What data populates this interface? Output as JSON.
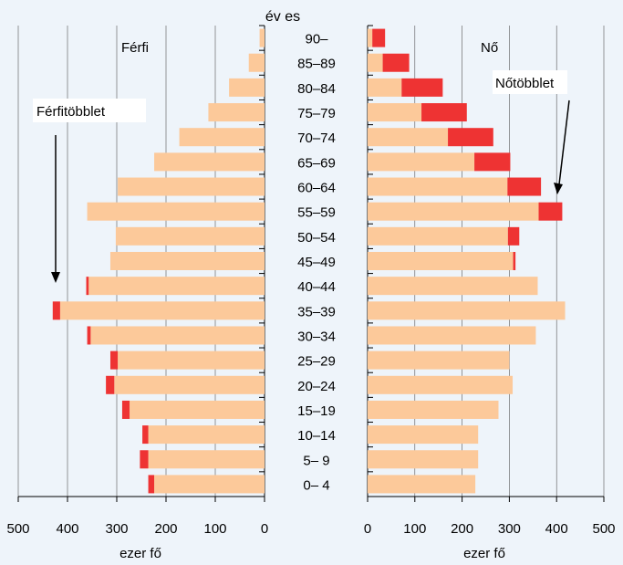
{
  "chart_data": {
    "type": "bar",
    "orientation": "horizontal",
    "layout": "population-pyramid",
    "age_axis_title": "év es",
    "categories": [
      "0– 4",
      "5– 9",
      "10–14",
      "15–19",
      "20–24",
      "25–29",
      "30–34",
      "35–39",
      "40–44",
      "45–49",
      "50–54",
      "55–59",
      "60–64",
      "65–69",
      "70–74",
      "75–79",
      "80–84",
      "85–89",
      "90–"
    ],
    "left_panel": {
      "label": "Férfi",
      "xlabel": "ezer fő",
      "xlim": [
        0,
        500
      ],
      "ticks": [
        "500",
        "400",
        "300",
        "200",
        "100",
        "0"
      ],
      "annotation": "Férfitöbblet",
      "series": [
        {
          "name": "base",
          "color": "#fcc99a",
          "values": [
            224,
            236,
            236,
            274,
            305,
            298,
            353,
            415,
            357,
            313,
            302,
            360,
            298,
            224,
            173,
            114,
            72,
            32,
            10
          ]
        },
        {
          "name": "surplus",
          "color": "#ee3333",
          "values": [
            12,
            17,
            12,
            15,
            17,
            15,
            7,
            15,
            5,
            0,
            0,
            0,
            0,
            0,
            0,
            0,
            0,
            0,
            0
          ]
        }
      ]
    },
    "right_panel": {
      "label": "Nő",
      "xlabel": "ezer fő",
      "xlim": [
        0,
        500
      ],
      "ticks": [
        "0",
        "100",
        "200",
        "300",
        "400",
        "500"
      ],
      "annotation": "Nőtöbblet",
      "series": [
        {
          "name": "base",
          "color": "#fcc99a",
          "values": [
            228,
            234,
            234,
            277,
            307,
            300,
            356,
            418,
            360,
            308,
            297,
            362,
            296,
            226,
            170,
            114,
            72,
            32,
            10
          ]
        },
        {
          "name": "surplus",
          "color": "#ee3333",
          "values": [
            0,
            0,
            0,
            0,
            0,
            0,
            0,
            0,
            0,
            5,
            24,
            50,
            71,
            76,
            96,
            96,
            87,
            56,
            27
          ]
        }
      ]
    },
    "colors": {
      "background": "#eef4fa",
      "base": "#fcc99a",
      "surplus": "#ee3333"
    }
  }
}
